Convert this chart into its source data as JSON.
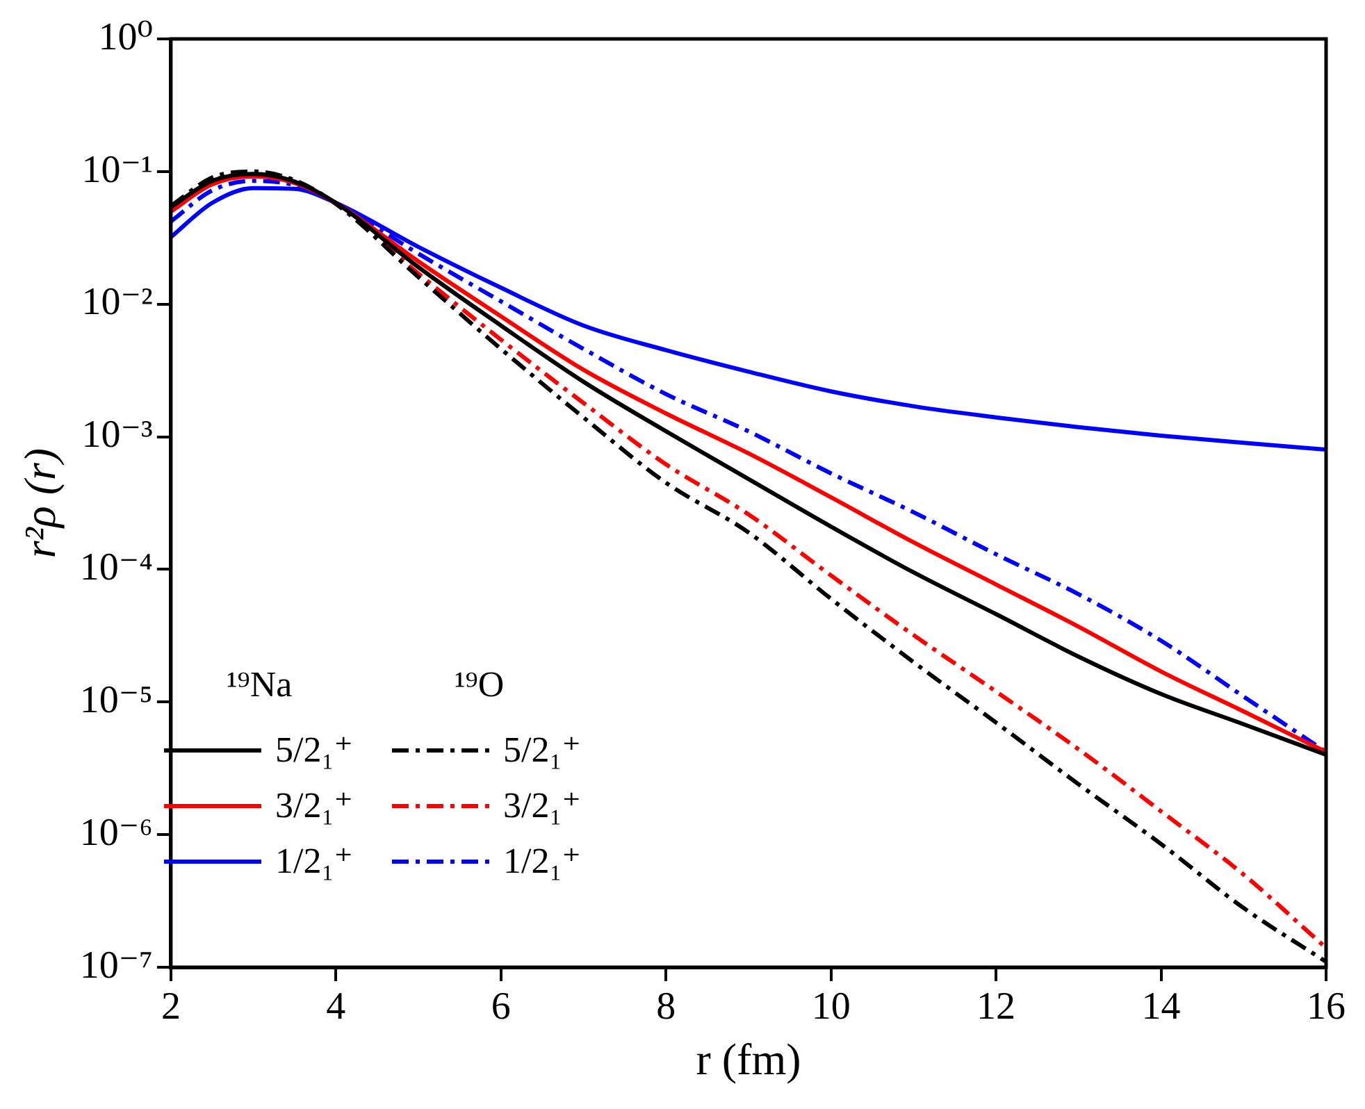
{
  "chart_data": {
    "type": "line",
    "xlabel": "r (fm)",
    "ylabel": "r²ρ (r)",
    "x": [
      2,
      2.5,
      3,
      3.5,
      4,
      5,
      6,
      7,
      8,
      9,
      10,
      11,
      12,
      13,
      14,
      15,
      16
    ],
    "series": [
      {
        "name": "5/2₁⁺",
        "color": "#000000",
        "line_style": "solid",
        "values": [
          0.054,
          0.085,
          0.096,
          0.084,
          0.058,
          0.019,
          0.0069,
          0.0026,
          0.0011,
          0.00048,
          0.00021,
          9.5e-05,
          4.6e-05,
          2.2e-05,
          1.15e-05,
          6.8e-06,
          4e-06
        ]
      },
      {
        "name": "3/2₁⁺",
        "color": "#ff0000",
        "line_style": "solid",
        "values": [
          0.05,
          0.08,
          0.092,
          0.082,
          0.058,
          0.021,
          0.0081,
          0.0032,
          0.0015,
          0.00075,
          0.00035,
          0.00016,
          7.7e-05,
          3.7e-05,
          1.7e-05,
          8.5e-06,
          4.2e-06
        ]
      },
      {
        "name": "1/2₁⁺",
        "color": "#0000ff",
        "line_style": "solid",
        "values": [
          0.032,
          0.058,
          0.075,
          0.074,
          0.058,
          0.027,
          0.0133,
          0.0069,
          0.0045,
          0.0031,
          0.0022,
          0.0017,
          0.0014,
          0.00118,
          0.00102,
          0.0009,
          0.0008
        ]
      },
      {
        "name": "5/2₁⁺",
        "color": "#000000",
        "line_style": "dashdot",
        "values": [
          0.055,
          0.09,
          0.1,
          0.086,
          0.057,
          0.016,
          0.0046,
          0.0014,
          0.00045,
          0.00019,
          6e-05,
          2e-05,
          7e-06,
          2.4e-06,
          8.5e-07,
          2.8e-07,
          1.1e-07
        ]
      },
      {
        "name": "3/2₁⁺",
        "color": "#ff0000",
        "line_style": "dashdot",
        "values": [
          0.05,
          0.085,
          0.095,
          0.083,
          0.057,
          0.017,
          0.0054,
          0.0018,
          0.00062,
          0.00026,
          9e-05,
          3.2e-05,
          1.2e-05,
          4.4e-06,
          1.5e-06,
          5e-07,
          1.4e-07
        ]
      },
      {
        "name": "1/2₁⁺",
        "color": "#0000ff",
        "line_style": "dashdot",
        "values": [
          0.042,
          0.072,
          0.085,
          0.079,
          0.058,
          0.024,
          0.0105,
          0.0046,
          0.0021,
          0.0011,
          0.00053,
          0.00027,
          0.00013,
          6.5e-05,
          2.9e-05,
          1.1e-05,
          4.2e-06
        ]
      }
    ],
    "annotations": [
      "¹⁹Na",
      "¹⁹O"
    ],
    "log": "y",
    "legend": "bottom left",
    "marker": "none",
    "xlim": [
      2,
      16
    ],
    "xticks": [
      2,
      4,
      6,
      8,
      10,
      12,
      14,
      16
    ],
    "ylim": [
      1e-07,
      1
    ],
    "yticks": [
      {
        "value": 1e-07,
        "label": "10⁻⁷"
      },
      {
        "value": 1e-06,
        "label": "10⁻⁶"
      },
      {
        "value": 1e-05,
        "label": "10⁻⁵"
      },
      {
        "value": 0.0001,
        "label": "10⁻⁴"
      },
      {
        "value": 0.001,
        "label": "10⁻³"
      },
      {
        "value": 0.01,
        "label": "10⁻²"
      },
      {
        "value": 0.1,
        "label": "10⁻¹"
      },
      {
        "value": 1,
        "label": "10⁰"
      }
    ]
  }
}
